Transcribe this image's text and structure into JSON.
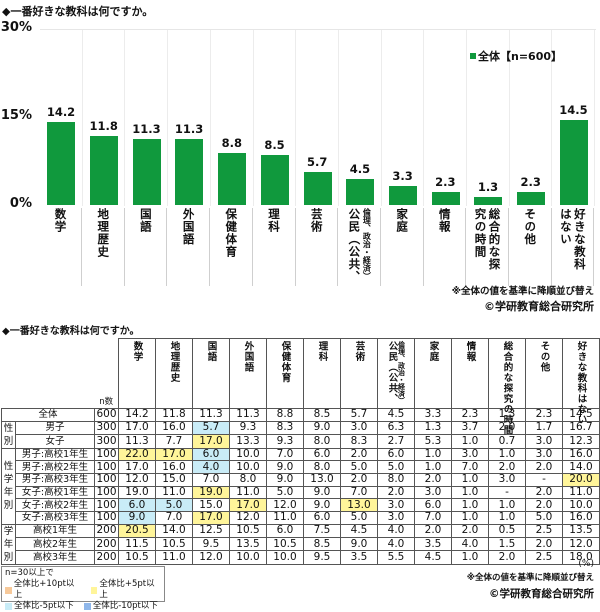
{
  "chart": {
    "title": "◆一番好きな教科は何ですか。",
    "legend_label": "全体【n=600】",
    "y_ticks": [
      "30%",
      "15%",
      "0%"
    ],
    "note": "※全体の値を基準に降順並び替え",
    "copyright": "©学研教育総合研究所"
  },
  "colors": {
    "bar": "#10993d",
    "highlight_plus10": "#f7c99a",
    "highlight_plus5": "#fff59a",
    "highlight_minus5": "#c9ecf7",
    "highlight_minus10": "#8fb7ea"
  },
  "chart_data": {
    "type": "bar",
    "title": "◆一番好きな教科は何ですか。",
    "categories": [
      "数学",
      "地理歴史",
      "国語",
      "外国語",
      "保健体育",
      "理科",
      "芸術",
      "公民（公共、倫理、政治・経済）",
      "家庭",
      "情報",
      "総合的な探究の時間",
      "その他",
      "好きな教科はない"
    ],
    "series": [
      {
        "name": "全体【n=600】",
        "values": [
          14.2,
          11.8,
          11.3,
          11.3,
          8.8,
          8.5,
          5.7,
          4.5,
          3.3,
          2.3,
          1.3,
          2.3,
          14.5
        ]
      }
    ],
    "xlabel": "",
    "ylabel": "%",
    "ylim": [
      0,
      30
    ],
    "y_ticks": [
      0,
      15,
      30
    ],
    "grid": "vertical separators",
    "legend_position": "top-right"
  },
  "table": {
    "title": "◆一番好きな教科は何ですか。",
    "n_header": "n数",
    "columns": [
      "数学",
      "地理歴史",
      "国語",
      "外国語",
      "保健体育",
      "理科",
      "芸術",
      "公民",
      "家庭",
      "情報",
      "総合的な探究の時間",
      "その他",
      "好きな教科はない"
    ],
    "civics_sub": "（公共、倫理、政治・経済）",
    "groups": {
      "gender": "性別",
      "gender_grade": "性学年別",
      "grade": "学年別"
    },
    "rows": [
      {
        "label": "全体",
        "n": "600",
        "values": [
          "14.2",
          "11.8",
          "11.3",
          "11.3",
          "8.8",
          "8.5",
          "5.7",
          "4.5",
          "3.3",
          "2.3",
          "1.3",
          "2.3",
          "14.5"
        ],
        "hl": [
          "",
          "",
          "",
          "",
          "",
          "",
          "",
          "",
          "",
          "",
          "",
          "",
          ""
        ]
      },
      {
        "label": "男子",
        "n": "300",
        "values": [
          "17.0",
          "16.0",
          "5.7",
          "9.3",
          "8.3",
          "9.0",
          "3.0",
          "6.3",
          "1.3",
          "3.7",
          "2.0",
          "1.7",
          "16.7"
        ],
        "hl": [
          "",
          "",
          "b",
          "",
          "",
          "",
          "",
          "",
          "",
          "",
          "",
          "",
          ""
        ]
      },
      {
        "label": "女子",
        "n": "300",
        "values": [
          "11.3",
          "7.7",
          "17.0",
          "13.3",
          "9.3",
          "8.0",
          "8.3",
          "2.7",
          "5.3",
          "1.0",
          "0.7",
          "3.0",
          "12.3"
        ],
        "hl": [
          "",
          "",
          "y",
          "",
          "",
          "",
          "",
          "",
          "",
          "",
          "",
          "",
          ""
        ]
      },
      {
        "label": "男子:高校1年生",
        "n": "100",
        "values": [
          "22.0",
          "17.0",
          "6.0",
          "10.0",
          "7.0",
          "6.0",
          "2.0",
          "6.0",
          "1.0",
          "3.0",
          "1.0",
          "3.0",
          "16.0"
        ],
        "hl": [
          "y",
          "y",
          "b",
          "",
          "",
          "",
          "",
          "",
          "",
          "",
          "",
          "",
          ""
        ]
      },
      {
        "label": "男子:高校2年生",
        "n": "100",
        "values": [
          "17.0",
          "16.0",
          "4.0",
          "10.0",
          "9.0",
          "8.0",
          "5.0",
          "5.0",
          "1.0",
          "7.0",
          "2.0",
          "2.0",
          "14.0"
        ],
        "hl": [
          "",
          "",
          "b",
          "",
          "",
          "",
          "",
          "",
          "",
          "",
          "",
          "",
          ""
        ]
      },
      {
        "label": "男子:高校3年生",
        "n": "100",
        "values": [
          "12.0",
          "15.0",
          "7.0",
          "8.0",
          "9.0",
          "13.0",
          "2.0",
          "8.0",
          "2.0",
          "1.0",
          "3.0",
          "-",
          "20.0"
        ],
        "hl": [
          "",
          "",
          "",
          "",
          "",
          "",
          "",
          "",
          "",
          "",
          "",
          "",
          "y"
        ]
      },
      {
        "label": "女子:高校1年生",
        "n": "100",
        "values": [
          "19.0",
          "11.0",
          "19.0",
          "11.0",
          "5.0",
          "9.0",
          "7.0",
          "2.0",
          "3.0",
          "1.0",
          "-",
          "2.0",
          "11.0"
        ],
        "hl": [
          "",
          "",
          "y",
          "",
          "",
          "",
          "",
          "",
          "",
          "",
          "",
          "",
          ""
        ]
      },
      {
        "label": "女子:高校2年生",
        "n": "100",
        "values": [
          "6.0",
          "5.0",
          "15.0",
          "17.0",
          "12.0",
          "9.0",
          "13.0",
          "3.0",
          "6.0",
          "1.0",
          "1.0",
          "2.0",
          "10.0"
        ],
        "hl": [
          "b",
          "b",
          "",
          "y",
          "",
          "",
          "y",
          "",
          "",
          "",
          "",
          "",
          ""
        ]
      },
      {
        "label": "女子:高校3年生",
        "n": "100",
        "values": [
          "9.0",
          "7.0",
          "17.0",
          "12.0",
          "11.0",
          "6.0",
          "5.0",
          "3.0",
          "7.0",
          "1.0",
          "1.0",
          "5.0",
          "16.0"
        ],
        "hl": [
          "b",
          "",
          "y",
          "",
          "",
          "",
          "",
          "",
          "",
          "",
          "",
          "",
          ""
        ]
      },
      {
        "label": "高校1年生",
        "n": "200",
        "values": [
          "20.5",
          "14.0",
          "12.5",
          "10.5",
          "6.0",
          "7.5",
          "4.5",
          "4.0",
          "2.0",
          "2.0",
          "0.5",
          "2.5",
          "13.5"
        ],
        "hl": [
          "y",
          "",
          "",
          "",
          "",
          "",
          "",
          "",
          "",
          "",
          "",
          "",
          ""
        ]
      },
      {
        "label": "高校2年生",
        "n": "200",
        "values": [
          "11.5",
          "10.5",
          "9.5",
          "13.5",
          "10.5",
          "8.5",
          "9.0",
          "4.0",
          "3.5",
          "4.0",
          "1.5",
          "2.0",
          "12.0"
        ],
        "hl": [
          "",
          "",
          "",
          "",
          "",
          "",
          "",
          "",
          "",
          "",
          "",
          "",
          ""
        ]
      },
      {
        "label": "高校3年生",
        "n": "200",
        "values": [
          "10.5",
          "11.0",
          "12.0",
          "10.0",
          "10.0",
          "9.5",
          "3.5",
          "5.5",
          "4.5",
          "1.0",
          "2.0",
          "2.5",
          "18.0"
        ],
        "hl": [
          "",
          "",
          "",
          "",
          "",
          "",
          "",
          "",
          "",
          "",
          "",
          "",
          ""
        ]
      }
    ],
    "unit": "(%)",
    "note": "※全体の値を基準に降順並び替え",
    "copyright": "©学研教育総合研究所"
  },
  "legend_box": {
    "heading": "n=30以上で",
    "items": [
      "全体比+10pt以上",
      "全体比+5pt以上",
      "全体比-5pt以下",
      "全体比-10pt以下"
    ]
  }
}
